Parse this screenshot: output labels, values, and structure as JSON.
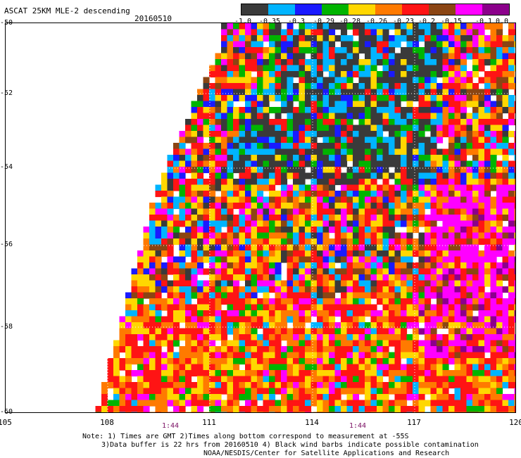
{
  "header": {
    "title": "ASCAT 25KM MLE-2 descending",
    "date": "20160510"
  },
  "colorbar": {
    "colors": [
      "#3a3a3a",
      "#00b4ff",
      "#1a1aff",
      "#00b400",
      "#ffd700",
      "#ff7a00",
      "#ff1414",
      "#8b4513",
      "#ff00ff",
      "#8b008b"
    ],
    "labels": [
      "-1.0",
      "-0.35",
      "-0.3",
      "-0.29",
      "-0.28",
      "-0.26",
      "-0.23",
      "-0.2",
      "-0.15",
      "-0.1",
      "0.0"
    ]
  },
  "axes": {
    "lat_labels": [
      "-50",
      "-52",
      "-54",
      "-56",
      "-58",
      "-60"
    ],
    "lon_labels": [
      "105",
      "108",
      "111",
      "114",
      "117",
      "120"
    ],
    "time_labels": [
      "1:44",
      "1:44"
    ]
  },
  "notes": {
    "line1": "Note: 1) Times are GMT 2)Times along bottom correspond to measurement at -55S",
    "line2": "3)Data buffer is 22 hrs from 20160510 4) Black wind barbs indicate possible contamination",
    "line3": "NOAA/NESDIS/Center for Satellite Applications and Research"
  }
}
